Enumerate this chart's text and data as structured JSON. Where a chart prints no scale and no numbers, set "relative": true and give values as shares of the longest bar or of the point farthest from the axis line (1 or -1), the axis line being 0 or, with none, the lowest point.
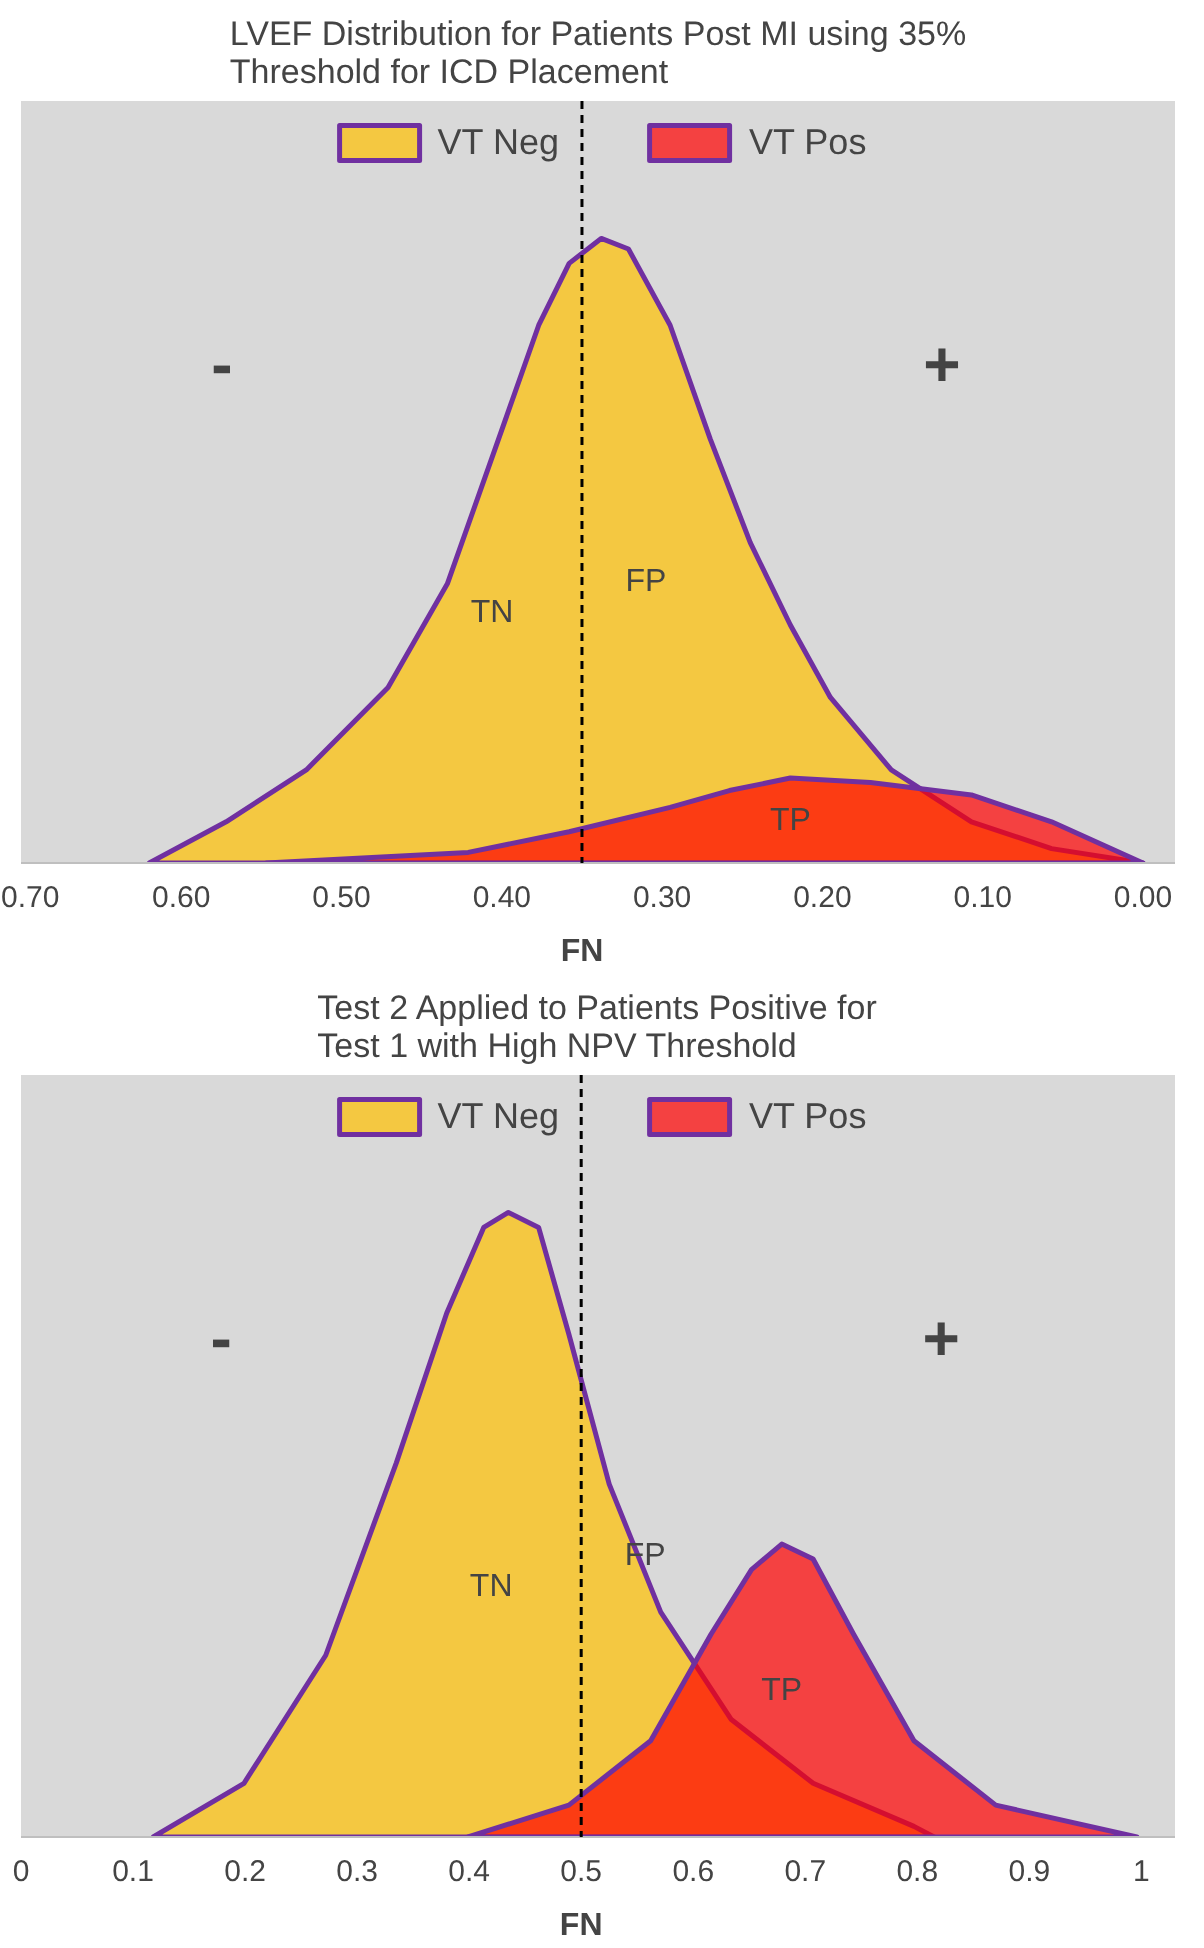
{
  "chart_data": [
    {
      "type": "area",
      "title": "LVEF Distribution for Patients Post MI using 35%\nThreshold for ICD Placement",
      "relative": true,
      "legend": "top",
      "grid": false,
      "xlim": [
        0.7,
        -0.02
      ],
      "xticks": [
        {
          "value": 0.7,
          "label": "0.70"
        },
        {
          "value": 0.6,
          "label": "0.60"
        },
        {
          "value": 0.5,
          "label": "0.50"
        },
        {
          "value": 0.4,
          "label": "0.40"
        },
        {
          "value": 0.3,
          "label": "0.30"
        },
        {
          "value": 0.2,
          "label": "0.20"
        },
        {
          "value": 0.1,
          "label": "0.10"
        },
        {
          "value": 0,
          "label": "0.00"
        }
      ],
      "series": [
        {
          "name": "VT Neg",
          "color": "#ffc000",
          "x": [
            0.62,
            0.572,
            0.522,
            0.471,
            0.434,
            0.402,
            0.377,
            0.358,
            0.338,
            0.321,
            0.295,
            0.27,
            0.245,
            0.22,
            0.195,
            0.157,
            0.107,
            0.057,
            0.0
          ],
          "values": [
            0,
            0.066,
            0.149,
            0.281,
            0.447,
            0.679,
            0.861,
            0.96,
            1,
            0.983,
            0.861,
            0.679,
            0.513,
            0.381,
            0.265,
            0.149,
            0.066,
            0.023,
            0
          ]
        },
        {
          "name": "VT Pos",
          "color": "#ff0000",
          "x": [
            0.547,
            0.421,
            0.358,
            0.295,
            0.258,
            0.22,
            0.17,
            0.107,
            0.057,
            0.0
          ],
          "values": [
            0,
            0.017,
            0.05,
            0.089,
            0.116,
            0.136,
            0.129,
            0.109,
            0.066,
            0
          ]
        }
      ],
      "ref_lines": [
        {
          "axis": "x",
          "value": 0.35,
          "line_style": "dashed"
        }
      ],
      "annotations": [
        "-",
        "+",
        "TN",
        "FP",
        "TP",
        "FN"
      ]
    },
    {
      "type": "area",
      "title": "Test 2 Applied to Patients Positive for\nTest 1 with High NPV Threshold",
      "relative": true,
      "legend": "top",
      "grid": false,
      "xlim": [
        0,
        1.03
      ],
      "xticks": [
        0,
        0.1,
        0.2,
        0.3,
        0.4,
        0.5,
        0.6,
        0.7,
        0.8,
        0.9,
        1
      ],
      "series": [
        {
          "name": "VT Neg",
          "color": "#ffc000",
          "x": [
            0.118,
            0.199,
            0.272,
            0.335,
            0.38,
            0.413,
            0.435,
            0.462,
            0.489,
            0.525,
            0.571,
            0.634,
            0.707,
            0.797,
            0.815
          ],
          "values": [
            0,
            0.086,
            0.291,
            0.599,
            0.839,
            0.976,
            1,
            0.976,
            0.805,
            0.565,
            0.36,
            0.188,
            0.086,
            0.017,
            0
          ]
        },
        {
          "name": "VT Pos",
          "color": "#ff0000",
          "x": [
            0.399,
            0.489,
            0.562,
            0.616,
            0.652,
            0.679,
            0.707,
            0.743,
            0.797,
            0.87,
            0.996
          ],
          "values": [
            0,
            0.051,
            0.154,
            0.325,
            0.428,
            0.469,
            0.445,
            0.325,
            0.154,
            0.051,
            0
          ]
        }
      ],
      "ref_lines": [
        {
          "axis": "x",
          "value": 0.5,
          "line_style": "dashed"
        }
      ],
      "annotations": [
        "-",
        "+",
        "TN",
        "FP",
        "TP",
        "FN"
      ]
    }
  ]
}
